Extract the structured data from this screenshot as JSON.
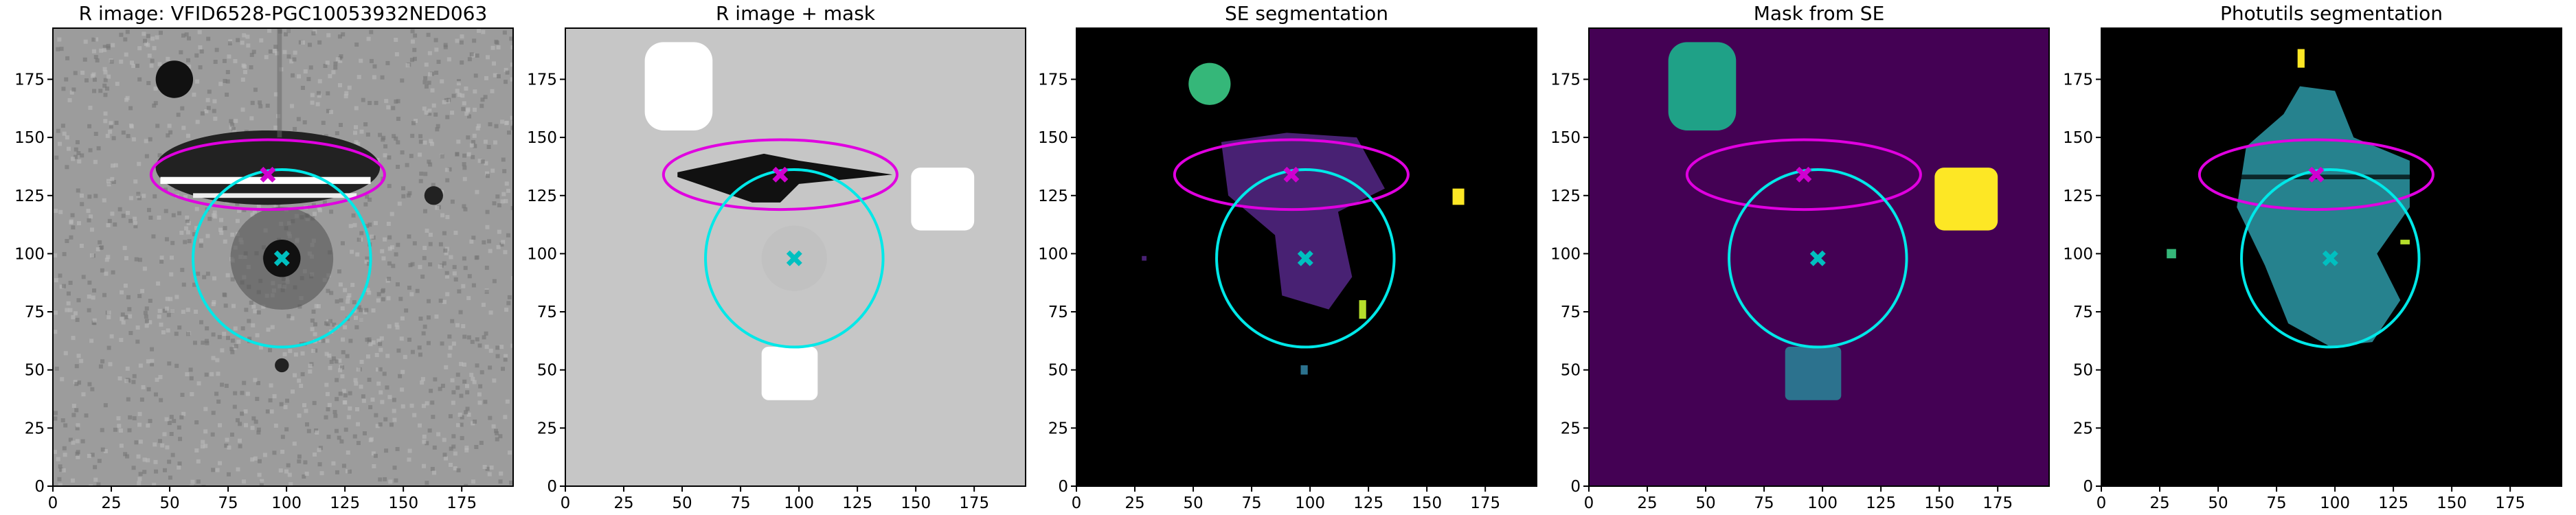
{
  "chart_data": [
    {
      "type": "image",
      "title": "R image: VFID6528-PGC10053932NED063",
      "background": "#9c9c9c",
      "xlim": [
        0,
        197
      ],
      "ylim": [
        0,
        197
      ],
      "xticks": [
        0,
        25,
        50,
        75,
        100,
        125,
        150,
        175
      ],
      "yticks": [
        0,
        25,
        50,
        75,
        100,
        125,
        150,
        175
      ],
      "ellipse": {
        "cx": 92,
        "cy": 134,
        "rx": 50,
        "ry": 15,
        "color": "#e000e0"
      },
      "circle": {
        "cx": 98,
        "cy": 98,
        "r": 38,
        "color": "#00e8e8"
      },
      "series": [
        {
          "color": "#d000d0",
          "x": [
            92
          ],
          "values": [
            134
          ]
        },
        {
          "color": "#00c0c0",
          "x": [
            98
          ],
          "values": [
            98
          ]
        }
      ]
    },
    {
      "type": "image",
      "title": "R image + mask",
      "background": "#c6c6c6",
      "xlim": [
        0,
        197
      ],
      "ylim": [
        0,
        197
      ],
      "xticks": [
        0,
        25,
        50,
        75,
        100,
        125,
        150,
        175
      ],
      "yticks": [
        0,
        25,
        50,
        75,
        100,
        125,
        150,
        175
      ],
      "ellipse": {
        "cx": 92,
        "cy": 134,
        "rx": 50,
        "ry": 15,
        "color": "#e000e0"
      },
      "circle": {
        "cx": 98,
        "cy": 98,
        "r": 38,
        "color": "#00e8e8"
      },
      "series": [
        {
          "color": "#d000d0",
          "x": [
            92
          ],
          "values": [
            134
          ]
        },
        {
          "color": "#00c0c0",
          "x": [
            98
          ],
          "values": [
            98
          ]
        }
      ]
    },
    {
      "type": "image",
      "title": "SE segmentation",
      "background": "#000000",
      "xlim": [
        0,
        197
      ],
      "ylim": [
        0,
        197
      ],
      "xticks": [
        0,
        25,
        50,
        75,
        100,
        125,
        150,
        175
      ],
      "yticks": [
        0,
        25,
        50,
        75,
        100,
        125,
        150,
        175
      ],
      "ellipse": {
        "cx": 92,
        "cy": 134,
        "rx": 50,
        "ry": 15,
        "color": "#e000e0"
      },
      "circle": {
        "cx": 98,
        "cy": 98,
        "r": 38,
        "color": "#00e8e8"
      },
      "series": [
        {
          "color": "#d000d0",
          "x": [
            92
          ],
          "values": [
            134
          ]
        },
        {
          "color": "#00c0c0",
          "x": [
            98
          ],
          "values": [
            98
          ]
        }
      ]
    },
    {
      "type": "image",
      "title": "Mask from SE",
      "background": "#440154",
      "xlim": [
        0,
        197
      ],
      "ylim": [
        0,
        197
      ],
      "xticks": [
        0,
        25,
        50,
        75,
        100,
        125,
        150,
        175
      ],
      "yticks": [
        0,
        25,
        50,
        75,
        100,
        125,
        150,
        175
      ],
      "ellipse": {
        "cx": 92,
        "cy": 134,
        "rx": 50,
        "ry": 15,
        "color": "#e000e0"
      },
      "circle": {
        "cx": 98,
        "cy": 98,
        "r": 38,
        "color": "#00e8e8"
      },
      "series": [
        {
          "color": "#d000d0",
          "x": [
            92
          ],
          "values": [
            134
          ]
        },
        {
          "color": "#00c0c0",
          "x": [
            98
          ],
          "values": [
            98
          ]
        }
      ]
    },
    {
      "type": "image",
      "title": "Photutils segmentation",
      "background": "#000000",
      "xlim": [
        0,
        197
      ],
      "ylim": [
        0,
        197
      ],
      "xticks": [
        0,
        25,
        50,
        75,
        100,
        125,
        150,
        175
      ],
      "yticks": [
        0,
        25,
        50,
        75,
        100,
        125,
        150,
        175
      ],
      "ellipse": {
        "cx": 92,
        "cy": 134,
        "rx": 50,
        "ry": 15,
        "color": "#e000e0"
      },
      "circle": {
        "cx": 98,
        "cy": 98,
        "r": 38,
        "color": "#00e8e8"
      },
      "series": [
        {
          "color": "#d000d0",
          "x": [
            92
          ],
          "values": [
            134
          ]
        },
        {
          "color": "#00c0c0",
          "x": [
            98
          ],
          "values": [
            98
          ]
        }
      ]
    }
  ]
}
